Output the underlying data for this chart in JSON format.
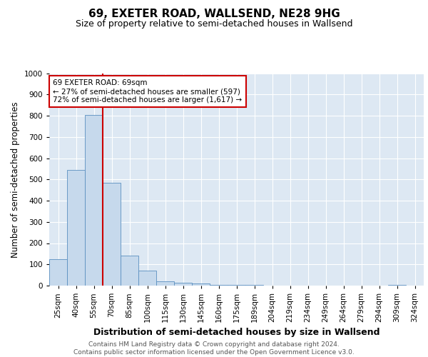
{
  "title": "69, EXETER ROAD, WALLSEND, NE28 9HG",
  "subtitle": "Size of property relative to semi-detached houses in Wallsend",
  "xlabel": "Distribution of semi-detached houses by size in Wallsend",
  "ylabel": "Number of semi-detached properties",
  "bin_labels": [
    "25sqm",
    "40sqm",
    "55sqm",
    "70sqm",
    "85sqm",
    "100sqm",
    "115sqm",
    "130sqm",
    "145sqm",
    "160sqm",
    "175sqm",
    "189sqm",
    "204sqm",
    "219sqm",
    "234sqm",
    "249sqm",
    "264sqm",
    "279sqm",
    "294sqm",
    "309sqm",
    "324sqm"
  ],
  "bar_heights": [
    125,
    545,
    805,
    485,
    140,
    70,
    20,
    15,
    10,
    5,
    3,
    2,
    1,
    1,
    1,
    0,
    0,
    0,
    0,
    2,
    0
  ],
  "bar_color": "#c6d9ec",
  "bar_edge_color": "#5a8fc0",
  "property_sqm": 69,
  "vline_bin_index": 3,
  "annotation_text": "69 EXETER ROAD: 69sqm\n← 27% of semi-detached houses are smaller (597)\n72% of semi-detached houses are larger (1,617) →",
  "annotation_box_color": "#ffffff",
  "annotation_box_edge_color": "#cc0000",
  "vline_color": "#cc0000",
  "ylim": [
    0,
    1000
  ],
  "yticks": [
    0,
    100,
    200,
    300,
    400,
    500,
    600,
    700,
    800,
    900,
    1000
  ],
  "background_color": "#dde8f3",
  "footer_text": "Contains HM Land Registry data © Crown copyright and database right 2024.\nContains public sector information licensed under the Open Government Licence v3.0.",
  "title_fontsize": 11,
  "subtitle_fontsize": 9,
  "axis_label_fontsize": 8.5,
  "tick_fontsize": 7.5,
  "footer_fontsize": 6.5
}
